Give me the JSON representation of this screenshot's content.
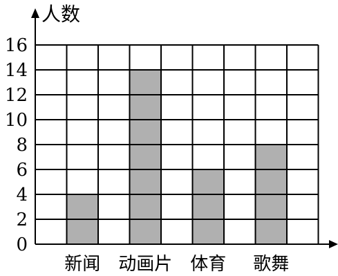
{
  "chart_data": {
    "type": "bar",
    "ylabel": "人数",
    "categories": [
      "新闻",
      "动画片",
      "体育",
      "歌舞"
    ],
    "values": [
      4,
      14,
      6,
      8
    ],
    "yticks": [
      0,
      2,
      4,
      6,
      8,
      10,
      12,
      14,
      16
    ],
    "ylim": [
      0,
      16
    ],
    "grid": true,
    "colors": {
      "bar": "#b0b0b0",
      "grid": "#000000"
    }
  }
}
